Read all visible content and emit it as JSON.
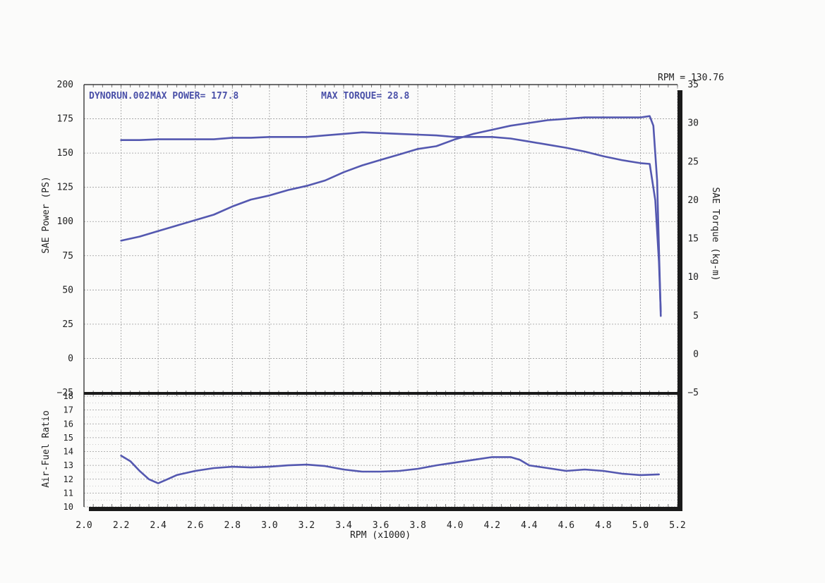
{
  "chart_data": {
    "type": "line",
    "header": {
      "run": "DYNORUN.002",
      "max_power_label": "MAX POWER= 177.8",
      "max_torque_label": "MAX TORQUE= 28.8",
      "rpm_readout": "RPM = 130.76"
    },
    "xlabel": "RPM (x1000)",
    "xlim": [
      2.0,
      5.2
    ],
    "x_ticks": [
      2.0,
      2.2,
      2.4,
      2.6,
      2.8,
      3.0,
      3.2,
      3.4,
      3.6,
      3.8,
      4.0,
      4.2,
      4.4,
      4.6,
      4.8,
      5.0,
      5.2
    ],
    "x_tick_labels": [
      "2.0",
      "2.2",
      "2.4",
      "2.6",
      "2.8",
      "3.0",
      "3.2",
      "3.4",
      "3.6",
      "3.8",
      "4.0",
      "4.2",
      "4.4",
      "4.6",
      "4.8",
      "5.0",
      "5.2"
    ],
    "grid": true,
    "colors": {
      "line": "#5458b0",
      "grid": "#9a9a9a",
      "frame": "#1a1a1a",
      "header_text": "#4a50a8"
    },
    "top_panel": {
      "left_axis": {
        "label": "SAE Power (PS)",
        "ylim": [
          -25,
          200
        ],
        "ticks": [
          -25,
          0,
          25,
          50,
          75,
          100,
          125,
          150,
          175,
          200
        ],
        "tick_labels": [
          "−25",
          "0",
          "25",
          "50",
          "75",
          "100",
          "125",
          "150",
          "175",
          "200"
        ]
      },
      "right_axis": {
        "label": "SAE Torque (kg-m)",
        "ylim": [
          -5,
          35
        ],
        "ticks": [
          -5,
          0,
          5,
          10,
          15,
          20,
          25,
          30,
          35
        ],
        "tick_labels": [
          "−5",
          "0",
          "5",
          "10",
          "15",
          "20",
          "25",
          "30",
          "35"
        ]
      },
      "series": [
        {
          "axis": "left",
          "x": [
            2.2,
            2.3,
            2.4,
            2.5,
            2.6,
            2.7,
            2.8,
            2.9,
            3.0,
            3.1,
            3.2,
            3.3,
            3.4,
            3.5,
            3.6,
            3.7,
            3.8,
            3.9,
            4.0,
            4.1,
            4.2,
            4.3,
            4.4,
            4.5,
            4.6,
            4.7,
            4.8,
            4.9,
            5.0,
            5.05,
            5.07,
            5.09,
            5.11
          ],
          "values": [
            86,
            89,
            93,
            97,
            101,
            105,
            111,
            116,
            119,
            123,
            126,
            130,
            136,
            141,
            145,
            149,
            153,
            155,
            160,
            164,
            167,
            170,
            172,
            174,
            175,
            176,
            176,
            176,
            176,
            177,
            170,
            130,
            31
          ]
        },
        {
          "axis": "right",
          "x": [
            2.2,
            2.3,
            2.4,
            2.5,
            2.6,
            2.7,
            2.8,
            2.9,
            3.0,
            3.1,
            3.2,
            3.3,
            3.4,
            3.5,
            3.6,
            3.7,
            3.8,
            3.9,
            4.0,
            4.1,
            4.2,
            4.3,
            4.4,
            4.5,
            4.6,
            4.7,
            4.8,
            4.9,
            5.0,
            5.05,
            5.08,
            5.1,
            5.11
          ],
          "values": [
            27.8,
            27.8,
            27.9,
            27.9,
            27.9,
            27.9,
            28.1,
            28.1,
            28.2,
            28.2,
            28.2,
            28.4,
            28.6,
            28.8,
            28.7,
            28.6,
            28.5,
            28.4,
            28.2,
            28.2,
            28.2,
            28.0,
            27.6,
            27.2,
            26.8,
            26.3,
            25.7,
            25.2,
            24.8,
            24.7,
            20.0,
            12.0,
            5.5
          ]
        }
      ]
    },
    "bottom_panel": {
      "ylabel": "Air-Fuel Ratio",
      "ylim": [
        10,
        18
      ],
      "ticks": [
        10,
        11,
        12,
        13,
        14,
        15,
        16,
        17,
        18
      ],
      "tick_labels": [
        "10",
        "11",
        "12",
        "13",
        "14",
        "15",
        "16",
        "17",
        "18"
      ],
      "series": [
        {
          "x": [
            2.2,
            2.25,
            2.3,
            2.35,
            2.4,
            2.45,
            2.5,
            2.6,
            2.7,
            2.8,
            2.9,
            3.0,
            3.1,
            3.2,
            3.3,
            3.4,
            3.5,
            3.6,
            3.7,
            3.8,
            3.9,
            4.0,
            4.1,
            4.2,
            4.3,
            4.35,
            4.4,
            4.5,
            4.6,
            4.7,
            4.8,
            4.9,
            5.0,
            5.1
          ],
          "values": [
            13.7,
            13.3,
            12.6,
            12.0,
            11.7,
            12.0,
            12.3,
            12.6,
            12.8,
            12.9,
            12.85,
            12.9,
            13.0,
            13.05,
            12.95,
            12.7,
            12.55,
            12.55,
            12.6,
            12.75,
            13.0,
            13.2,
            13.4,
            13.6,
            13.6,
            13.4,
            13.0,
            12.8,
            12.6,
            12.7,
            12.6,
            12.4,
            12.3,
            12.35
          ]
        }
      ]
    }
  }
}
